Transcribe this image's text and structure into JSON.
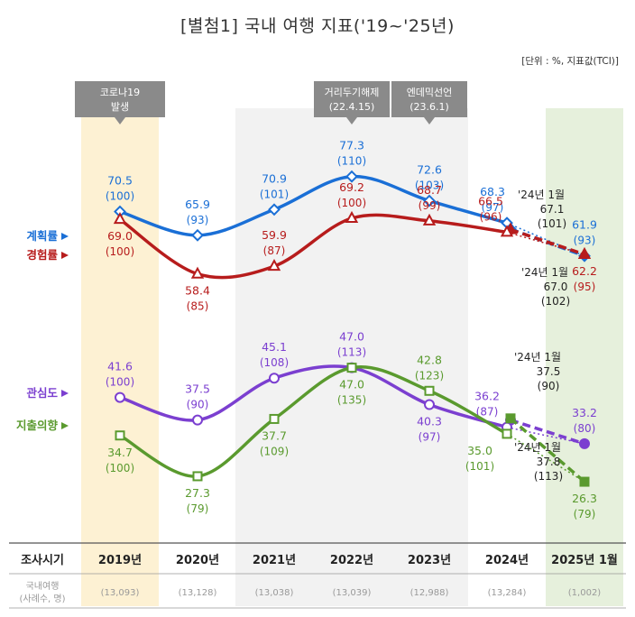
{
  "title": "[별첨1] 국내 여행 지표('19~'25년)",
  "unit": "[단위 : %, 지표값(TCI)]",
  "events": [
    {
      "label": "코로나19\n발생"
    },
    {
      "label": "거리두기해제\n(22.4.15)"
    },
    {
      "label": "엔데믹선언\n(23.6.1)"
    }
  ],
  "colors": {
    "plan": "#1a6fd6",
    "experience": "#b71c1c",
    "interest": "#7b3fd0",
    "spending": "#5a9a2e"
  },
  "chart_data": {
    "type": "line",
    "categories": [
      "2019년",
      "2020년",
      "2021년",
      "2022년",
      "2023년",
      "2024년",
      "2025년 1월"
    ],
    "x_header": "조사시기",
    "sample_header": "국내여행\n(사례수, 명)",
    "samples": [
      "(13,093)",
      "(13,128)",
      "(13,038)",
      "(13,039)",
      "(12,988)",
      "(13,284)",
      "(1,002)"
    ],
    "series": [
      {
        "name": "계획률",
        "key": "plan",
        "values": [
          70.5,
          65.9,
          70.9,
          77.3,
          72.6,
          68.3,
          61.9
        ],
        "index": [
          "(100)",
          "(93)",
          "(101)",
          "(110)",
          "(103)",
          "(97)",
          "(93)"
        ],
        "jan24": {
          "label": "'24년 1월",
          "value": "67.1",
          "index": "(101)"
        }
      },
      {
        "name": "경험률",
        "key": "experience",
        "values": [
          69.0,
          58.4,
          59.9,
          69.2,
          68.7,
          66.5,
          62.2
        ],
        "index": [
          "(100)",
          "(85)",
          "(87)",
          "(100)",
          "(99)",
          "(96)",
          "(95)"
        ],
        "jan24": {
          "label": "'24년 1월",
          "value": "67.0",
          "index": "(102)"
        }
      },
      {
        "name": "관심도",
        "key": "interest",
        "values": [
          41.6,
          37.5,
          45.1,
          47.0,
          40.3,
          36.2,
          33.2
        ],
        "index": [
          "(100)",
          "(90)",
          "(108)",
          "(113)",
          "(97)",
          "(87)",
          "(80)"
        ],
        "jan24": {
          "label": "'24년 1월",
          "value": "37.5",
          "index": "(90)"
        }
      },
      {
        "name": "지출의향",
        "key": "spending",
        "values": [
          34.7,
          27.3,
          37.7,
          47.0,
          42.8,
          35.0,
          26.3
        ],
        "index": [
          "(100)",
          "(79)",
          "(109)",
          "(135)",
          "(123)",
          "(101)",
          "(79)"
        ],
        "jan24": {
          "label": "'24년 1월",
          "value": "37.8",
          "index": "(113)"
        }
      }
    ]
  }
}
